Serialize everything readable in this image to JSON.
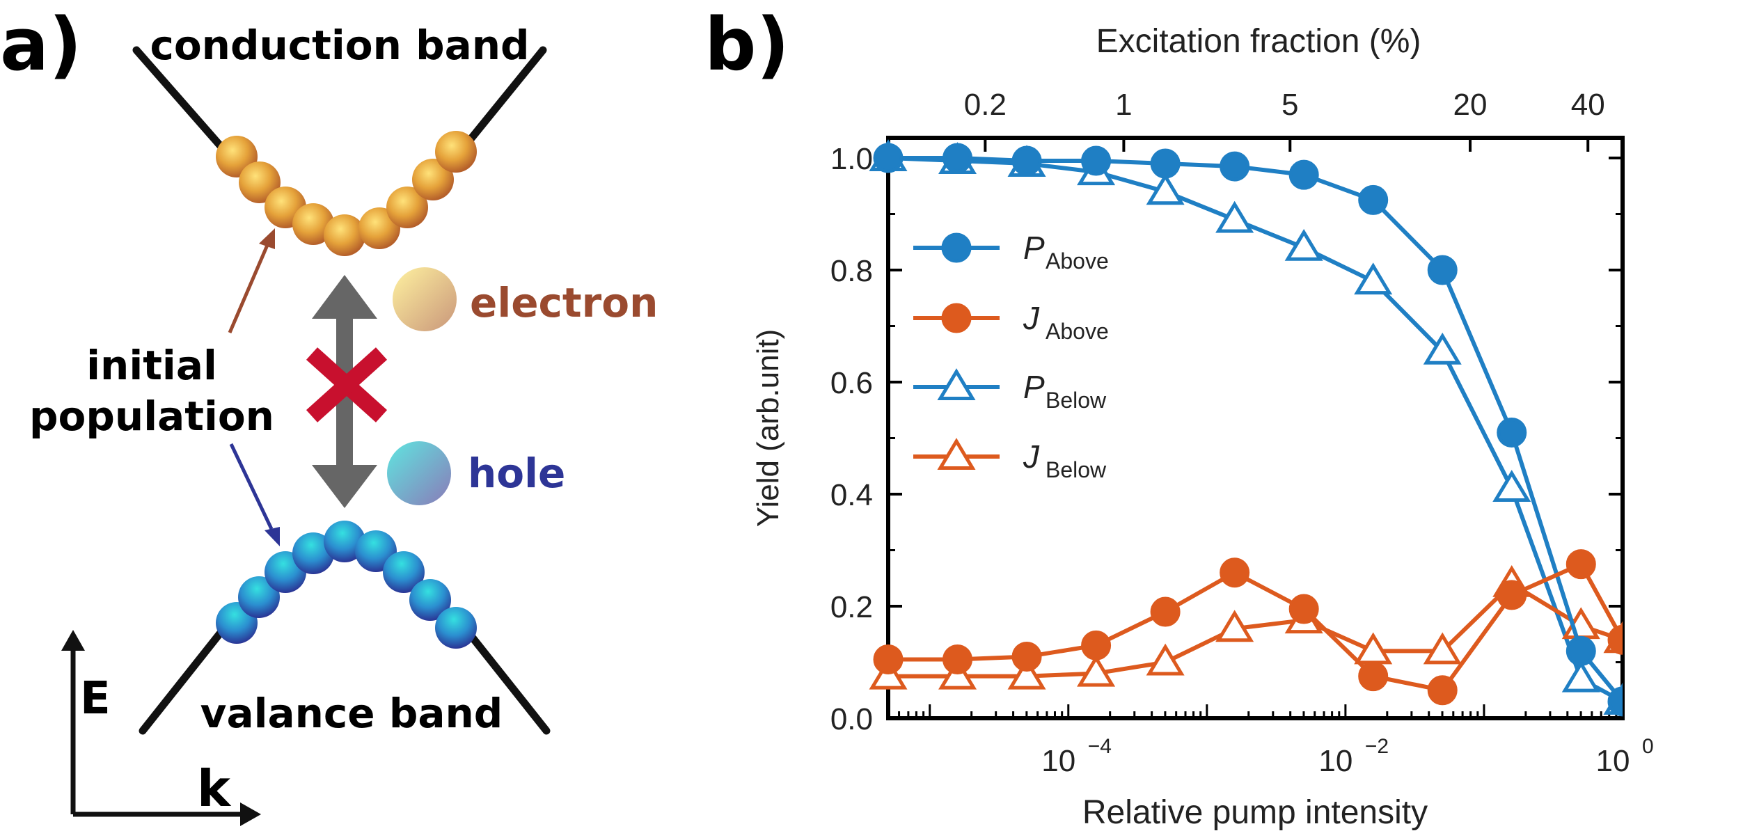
{
  "panel_a": {
    "label": "a)",
    "conduction_band": "conduction band",
    "valance_band": "valance band",
    "electron": "electron",
    "hole": "hole",
    "initial_line1": "initial",
    "initial_line2": "population",
    "axis_e": "E",
    "axis_k": "k"
  },
  "panel_b": {
    "label": "b)"
  },
  "colors": {
    "blue": "#1f7fc4",
    "orange": "#dd5a1e",
    "electron_label": "#9a4a2f",
    "hole_label": "#2d3596",
    "cross": "#c8102e",
    "arrow": "#666666"
  },
  "chart_data": {
    "type": "line",
    "title": "",
    "xlabel": "Relative pump intensity",
    "ylabel": "Yield (arb.unit)",
    "x_scale": "log",
    "xlim_log10": [
      -5.3,
      0
    ],
    "ylim": [
      0,
      1.05
    ],
    "y_ticks": [
      {
        "value": 0.0,
        "label": "0.0"
      },
      {
        "value": 0.2,
        "label": "0.2"
      },
      {
        "value": 0.4,
        "label": "0.4"
      },
      {
        "value": 0.6,
        "label": "0.6"
      },
      {
        "value": 0.8,
        "label": "0.8"
      },
      {
        "value": 1.0,
        "label": "1.0"
      }
    ],
    "x_ticks": [
      {
        "log": -4,
        "base": "10",
        "exp": "−4"
      },
      {
        "log": -2,
        "base": "10",
        "exp": "−2"
      },
      {
        "log": 0,
        "base": "10",
        "exp": "0"
      }
    ],
    "top_axis": {
      "label": "Excitation fraction (%)",
      "ticks": [
        {
          "log": -4.6,
          "label": "0.2"
        },
        {
          "log": -3.6,
          "label": "1"
        },
        {
          "log": -2.4,
          "label": "5"
        },
        {
          "log": -1.1,
          "label": "20"
        },
        {
          "log": -0.25,
          "label": "40"
        }
      ]
    },
    "x_log": [
      -5.3,
      -4.8,
      -4.3,
      -3.8,
      -3.3,
      -2.8,
      -2.3,
      -1.8,
      -1.3,
      -0.8,
      -0.3,
      0
    ],
    "series": [
      {
        "name": "P",
        "sub": "Above",
        "color": "#1f7fc4",
        "marker": "circle",
        "filled": true,
        "values": [
          1.0,
          1.0,
          0.995,
          0.995,
          0.99,
          0.985,
          0.97,
          0.925,
          0.8,
          0.51,
          0.12,
          0.03
        ]
      },
      {
        "name": "J",
        "sub": "Above",
        "color": "#dd5a1e",
        "marker": "circle",
        "filled": true,
        "values": [
          0.105,
          0.105,
          0.11,
          0.13,
          0.19,
          0.26,
          0.195,
          0.075,
          0.05,
          0.22,
          0.275,
          0.14
        ]
      },
      {
        "name": "P",
        "sub": "Below",
        "color": "#1f7fc4",
        "marker": "triangle",
        "filled": false,
        "values": [
          1.0,
          0.995,
          0.99,
          0.975,
          0.94,
          0.89,
          0.84,
          0.78,
          0.655,
          0.41,
          0.07,
          0.03
        ]
      },
      {
        "name": "J",
        "sub": "Below",
        "color": "#dd5a1e",
        "marker": "triangle",
        "filled": false,
        "values": [
          0.075,
          0.075,
          0.075,
          0.08,
          0.1,
          0.16,
          0.175,
          0.12,
          0.12,
          0.24,
          0.165,
          0.14
        ]
      }
    ]
  }
}
